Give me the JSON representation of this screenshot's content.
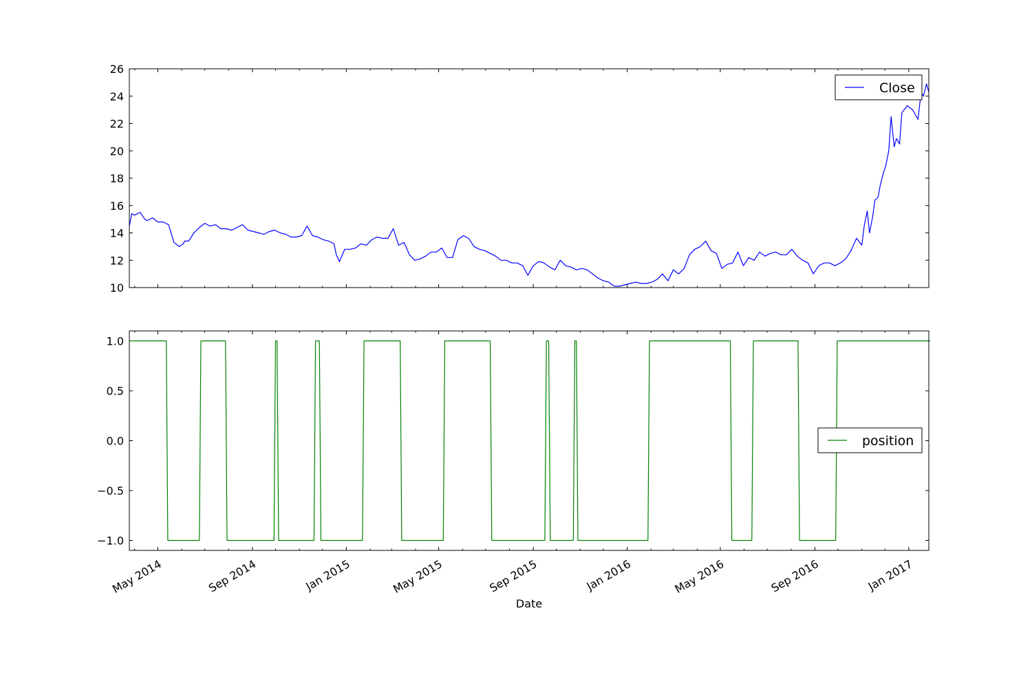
{
  "chart_data": [
    {
      "type": "line",
      "title": "",
      "xlabel": "",
      "ylabel": "",
      "ylim": [
        10,
        26
      ],
      "yticks": [
        "10",
        "12",
        "14",
        "16",
        "18",
        "20",
        "22",
        "24",
        "26"
      ],
      "x_range": [
        "2014-03-25",
        "2017-01-27"
      ],
      "x_tick_labels": [
        "May 2014",
        "Sep 2014",
        "Jan 2015",
        "May 2015",
        "Sep 2015",
        "Jan 2016",
        "May 2016",
        "Sep 2016",
        "Jan 2017"
      ],
      "legend_placement": "top-right",
      "series": [
        {
          "name": "Close",
          "color": "#0000ff",
          "x": [
            "2014-03-25",
            "2014-03-28",
            "2014-04-01",
            "2014-04-08",
            "2014-04-14",
            "2014-04-17",
            "2014-04-24",
            "2014-05-01",
            "2014-05-08",
            "2014-05-15",
            "2014-05-22",
            "2014-05-29",
            "2014-06-03",
            "2014-06-05",
            "2014-06-10",
            "2014-06-17",
            "2014-06-24",
            "2014-07-01",
            "2014-07-08",
            "2014-07-15",
            "2014-07-22",
            "2014-07-29",
            "2014-08-05",
            "2014-08-12",
            "2014-08-19",
            "2014-08-26",
            "2014-09-02",
            "2014-09-09",
            "2014-09-16",
            "2014-09-23",
            "2014-09-30",
            "2014-10-07",
            "2014-10-14",
            "2014-10-21",
            "2014-10-28",
            "2014-11-04",
            "2014-11-11",
            "2014-11-18",
            "2014-11-25",
            "2014-12-02",
            "2014-12-09",
            "2014-12-16",
            "2014-12-19",
            "2014-12-23",
            "2014-12-30",
            "2015-01-06",
            "2015-01-13",
            "2015-01-20",
            "2015-01-27",
            "2015-02-03",
            "2015-02-10",
            "2015-02-17",
            "2015-02-24",
            "2015-03-03",
            "2015-03-10",
            "2015-03-17",
            "2015-03-24",
            "2015-03-31",
            "2015-04-07",
            "2015-04-14",
            "2015-04-21",
            "2015-04-28",
            "2015-05-05",
            "2015-05-12",
            "2015-05-19",
            "2015-05-26",
            "2015-06-02",
            "2015-06-09",
            "2015-06-16",
            "2015-06-23",
            "2015-06-30",
            "2015-07-07",
            "2015-07-14",
            "2015-07-21",
            "2015-07-28",
            "2015-08-04",
            "2015-08-11",
            "2015-08-18",
            "2015-08-25",
            "2015-09-01",
            "2015-09-08",
            "2015-09-15",
            "2015-09-22",
            "2015-09-29",
            "2015-10-06",
            "2015-10-13",
            "2015-10-20",
            "2015-10-27",
            "2015-11-03",
            "2015-11-10",
            "2015-11-17",
            "2015-11-24",
            "2015-12-01",
            "2015-12-08",
            "2015-12-15",
            "2015-12-22",
            "2015-12-29",
            "2016-01-05",
            "2016-01-12",
            "2016-01-19",
            "2016-01-26",
            "2016-02-02",
            "2016-02-09",
            "2016-02-16",
            "2016-02-23",
            "2016-03-01",
            "2016-03-08",
            "2016-03-15",
            "2016-03-22",
            "2016-03-29",
            "2016-04-05",
            "2016-04-12",
            "2016-04-19",
            "2016-04-26",
            "2016-05-03",
            "2016-05-10",
            "2016-05-17",
            "2016-05-24",
            "2016-05-31",
            "2016-06-07",
            "2016-06-14",
            "2016-06-21",
            "2016-06-28",
            "2016-07-05",
            "2016-07-12",
            "2016-07-19",
            "2016-07-26",
            "2016-08-02",
            "2016-08-09",
            "2016-08-16",
            "2016-08-23",
            "2016-08-30",
            "2016-09-06",
            "2016-09-13",
            "2016-09-20",
            "2016-09-27",
            "2016-10-04",
            "2016-10-11",
            "2016-10-18",
            "2016-10-25",
            "2016-11-01",
            "2016-11-04",
            "2016-11-08",
            "2016-11-11",
            "2016-11-15",
            "2016-11-18",
            "2016-11-22",
            "2016-11-25",
            "2016-11-29",
            "2016-12-02",
            "2016-12-06",
            "2016-12-09",
            "2016-12-13",
            "2016-12-16",
            "2016-12-20",
            "2016-12-23",
            "2016-12-30",
            "2017-01-06",
            "2017-01-13",
            "2017-01-17",
            "2017-01-20",
            "2017-01-24",
            "2017-01-27"
          ],
          "values": [
            14.5,
            15.4,
            15.3,
            15.5,
            15.0,
            14.9,
            15.1,
            14.8,
            14.8,
            14.6,
            13.3,
            13.0,
            13.2,
            13.4,
            13.4,
            14.0,
            14.4,
            14.7,
            14.5,
            14.6,
            14.3,
            14.3,
            14.2,
            14.4,
            14.6,
            14.2,
            14.1,
            14.0,
            13.9,
            14.1,
            14.2,
            14.0,
            13.9,
            13.7,
            13.7,
            13.8,
            14.5,
            13.8,
            13.7,
            13.5,
            13.4,
            13.2,
            12.4,
            11.9,
            12.8,
            12.8,
            12.9,
            13.2,
            13.1,
            13.5,
            13.7,
            13.6,
            13.6,
            14.3,
            13.1,
            13.3,
            12.4,
            12.0,
            12.1,
            12.3,
            12.6,
            12.6,
            12.9,
            12.2,
            12.2,
            13.5,
            13.8,
            13.6,
            13.0,
            12.8,
            12.7,
            12.5,
            12.3,
            12.0,
            12.0,
            11.8,
            11.8,
            11.6,
            10.9,
            11.6,
            11.9,
            11.8,
            11.5,
            11.3,
            12.0,
            11.6,
            11.5,
            11.3,
            11.4,
            11.3,
            11.0,
            10.7,
            10.5,
            10.4,
            10.1,
            10.1,
            10.2,
            10.3,
            10.4,
            10.3,
            10.3,
            10.4,
            10.6,
            11.0,
            10.5,
            11.3,
            11.0,
            11.4,
            12.4,
            12.8,
            13.0,
            13.4,
            12.7,
            12.5,
            11.4,
            11.7,
            11.8,
            12.6,
            11.6,
            12.2,
            12.0,
            12.6,
            12.3,
            12.5,
            12.6,
            12.4,
            12.4,
            12.8,
            12.3,
            12.0,
            11.8,
            11.0,
            11.6,
            11.8,
            11.8,
            11.6,
            11.8,
            12.1,
            12.7,
            13.6,
            13.1,
            14.5,
            15.6,
            14.0,
            15.2,
            16.4,
            16.6,
            17.5,
            18.4,
            18.9,
            20.0,
            22.5,
            20.3,
            20.9,
            20.5,
            22.8,
            23.3,
            23.0,
            22.3,
            24.3,
            24.0,
            24.9,
            24.3
          ]
        }
      ]
    },
    {
      "type": "line",
      "title": "",
      "xlabel": "Date",
      "ylabel": "",
      "ylim": [
        -1.1,
        1.1
      ],
      "yticks": [
        "1.0",
        "0.5",
        "0.0",
        "−0.5",
        "−1.0"
      ],
      "x_range": [
        "2014-03-25",
        "2017-01-27"
      ],
      "x_tick_labels": [
        "May 2014",
        "Sep 2014",
        "Jan 2015",
        "May 2015",
        "Sep 2015",
        "Jan 2016",
        "May 2016",
        "Sep 2016",
        "Jan 2017"
      ],
      "legend_placement": "center-right",
      "series": [
        {
          "name": "position",
          "color": "#008000",
          "steps": [
            {
              "from": "2014-03-25",
              "value": 1
            },
            {
              "from": "2014-05-12",
              "value": -1
            },
            {
              "from": "2014-06-24",
              "value": 1
            },
            {
              "from": "2014-07-28",
              "value": -1
            },
            {
              "from": "2014-09-29",
              "value": 1
            },
            {
              "from": "2014-10-03",
              "value": -1
            },
            {
              "from": "2014-11-20",
              "value": 1
            },
            {
              "from": "2014-11-27",
              "value": -1
            },
            {
              "from": "2015-01-22",
              "value": 1
            },
            {
              "from": "2015-03-12",
              "value": -1
            },
            {
              "from": "2015-05-07",
              "value": 1
            },
            {
              "from": "2015-07-07",
              "value": -1
            },
            {
              "from": "2015-09-16",
              "value": 1
            },
            {
              "from": "2015-09-21",
              "value": -1
            },
            {
              "from": "2015-10-23",
              "value": 1
            },
            {
              "from": "2015-10-27",
              "value": -1
            },
            {
              "from": "2016-01-28",
              "value": 1
            },
            {
              "from": "2016-05-14",
              "value": -1
            },
            {
              "from": "2016-06-11",
              "value": 1
            },
            {
              "from": "2016-08-10",
              "value": -1
            },
            {
              "from": "2016-09-28",
              "value": 1
            },
            {
              "from": "2017-01-27",
              "value": 1
            }
          ]
        }
      ]
    }
  ]
}
